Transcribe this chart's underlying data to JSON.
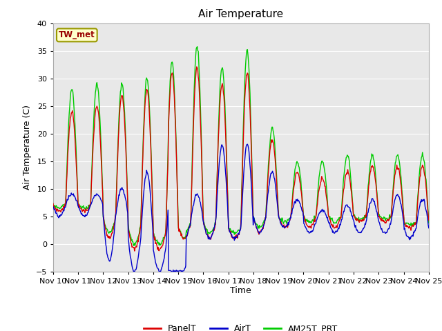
{
  "title": "Air Temperature",
  "xlabel": "Time",
  "ylabel": "Air Temperature (C)",
  "ylim": [
    -5,
    40
  ],
  "xlim": [
    0,
    15
  ],
  "x_tick_labels": [
    "Nov 10",
    "Nov 11",
    "Nov 12",
    "Nov 13",
    "Nov 14",
    "Nov 15",
    "Nov 16",
    "Nov 17",
    "Nov 18",
    "Nov 19",
    "Nov 20",
    "Nov 21",
    "Nov 22",
    "Nov 23",
    "Nov 24",
    "Nov 25"
  ],
  "station_label": "TW_met",
  "station_label_color": "#990000",
  "station_box_facecolor": "#ffffcc",
  "station_box_edgecolor": "#999900",
  "background_color": "#ffffff",
  "plot_bg_color": "#e8e8e8",
  "grid_color": "#ffffff",
  "line_PanelT_color": "#dd0000",
  "line_AirT_color": "#0000cc",
  "line_AM25T_color": "#00cc00",
  "legend_labels": [
    "PanelT",
    "AirT",
    "AM25T_PRT"
  ],
  "figsize": [
    6.4,
    4.8
  ],
  "dpi": 100
}
